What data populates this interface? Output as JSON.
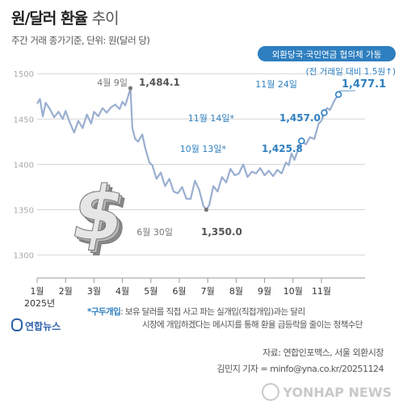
{
  "header": {
    "title": "원/달러 환율",
    "title_suffix": "추이",
    "unit": "주간 거래 종가기준, 단위: 원(달러 당)"
  },
  "chart_data": {
    "type": "line",
    "title": "원/달러 환율 추이",
    "ylim": [
      1280,
      1510
    ],
    "y_ticks": [
      1300,
      1350,
      1400,
      1450,
      1500
    ],
    "x_range": [
      1,
      12
    ],
    "x_ticks": [
      {
        "label": "1월",
        "x": 1
      },
      {
        "label": "2월",
        "x": 2
      },
      {
        "label": "3월",
        "x": 3
      },
      {
        "label": "4월",
        "x": 4
      },
      {
        "label": "5월",
        "x": 5
      },
      {
        "label": "6월",
        "x": 6
      },
      {
        "label": "7월",
        "x": 7
      },
      {
        "label": "8월",
        "x": 8
      },
      {
        "label": "9월",
        "x": 9
      },
      {
        "label": "10월",
        "x": 10
      },
      {
        "label": "11월",
        "x": 11
      }
    ],
    "year_label": "2025년",
    "series": [
      {
        "color": "#9aaed0",
        "points": [
          [
            1.0,
            1467
          ],
          [
            1.1,
            1472
          ],
          [
            1.2,
            1453
          ],
          [
            1.3,
            1468
          ],
          [
            1.45,
            1461
          ],
          [
            1.6,
            1452
          ],
          [
            1.75,
            1458
          ],
          [
            1.9,
            1450
          ],
          [
            2.0,
            1459
          ],
          [
            2.15,
            1446
          ],
          [
            2.3,
            1435
          ],
          [
            2.45,
            1448
          ],
          [
            2.6,
            1440
          ],
          [
            2.75,
            1455
          ],
          [
            2.9,
            1445
          ],
          [
            3.0,
            1458
          ],
          [
            3.15,
            1453
          ],
          [
            3.3,
            1462
          ],
          [
            3.45,
            1457
          ],
          [
            3.6,
            1463
          ],
          [
            3.75,
            1466
          ],
          [
            3.9,
            1461
          ],
          [
            4.0,
            1469
          ],
          [
            4.1,
            1465
          ],
          [
            4.2,
            1475
          ],
          [
            4.28,
            1484.1
          ],
          [
            4.35,
            1440
          ],
          [
            4.45,
            1428
          ],
          [
            4.55,
            1425
          ],
          [
            4.7,
            1433
          ],
          [
            4.8,
            1418
          ],
          [
            4.95,
            1402
          ],
          [
            5.05,
            1399
          ],
          [
            5.2,
            1384
          ],
          [
            5.35,
            1391
          ],
          [
            5.5,
            1376
          ],
          [
            5.65,
            1384
          ],
          [
            5.8,
            1370
          ],
          [
            5.95,
            1368
          ],
          [
            6.1,
            1375
          ],
          [
            6.25,
            1362
          ],
          [
            6.4,
            1362
          ],
          [
            6.55,
            1382
          ],
          [
            6.7,
            1372
          ],
          [
            6.85,
            1354
          ],
          [
            6.95,
            1350.0
          ],
          [
            7.05,
            1355
          ],
          [
            7.2,
            1376
          ],
          [
            7.35,
            1370
          ],
          [
            7.5,
            1386
          ],
          [
            7.65,
            1380
          ],
          [
            7.8,
            1395
          ],
          [
            7.95,
            1388
          ],
          [
            8.1,
            1390
          ],
          [
            8.25,
            1400
          ],
          [
            8.4,
            1386
          ],
          [
            8.55,
            1392
          ],
          [
            8.7,
            1390
          ],
          [
            8.85,
            1396
          ],
          [
            9.0,
            1388
          ],
          [
            9.15,
            1393
          ],
          [
            9.3,
            1387
          ],
          [
            9.45,
            1394
          ],
          [
            9.6,
            1390
          ],
          [
            9.75,
            1402
          ],
          [
            9.85,
            1399
          ],
          [
            9.95,
            1412
          ],
          [
            10.05,
            1405
          ],
          [
            10.2,
            1418
          ],
          [
            10.3,
            1425.8
          ],
          [
            10.45,
            1422
          ],
          [
            10.6,
            1430
          ],
          [
            10.75,
            1428
          ],
          [
            10.9,
            1445
          ],
          [
            11.0,
            1448
          ],
          [
            11.1,
            1457.0
          ],
          [
            11.2,
            1462
          ],
          [
            11.3,
            1460
          ],
          [
            11.45,
            1470
          ],
          [
            11.6,
            1477.1
          ]
        ]
      }
    ],
    "annotations": [
      {
        "date": "4월 9일",
        "value": "1,484.1",
        "x": 4.28,
        "y": 1484.1,
        "marker": "dot"
      },
      {
        "date": "6월 30일",
        "value": "1,350.0",
        "x": 6.95,
        "y": 1350.0,
        "marker": "dot"
      },
      {
        "date": "10월 13일",
        "star": "*",
        "value": "1,425.8",
        "x": 10.3,
        "y": 1425.8,
        "marker": "ring"
      },
      {
        "date": "11월 14일",
        "star": "*",
        "value": "1,457.0",
        "x": 11.1,
        "y": 1457.0,
        "marker": "ring"
      },
      {
        "date": "11월 24일",
        "value": "1,477.1",
        "x": 11.6,
        "y": 1477.1,
        "marker": "ring"
      }
    ],
    "callout": {
      "label": "외환당국·국민연금 협의체 가동",
      "sub": "(전 거래일 대비 1.5원↑)"
    }
  },
  "note": {
    "term": "*구두개입",
    "line1": ": 보유 달러를 직접 사고 파는 실개입(직접개입)과는 달리",
    "line2": "시장에 개입하겠다는 메시지를 통해 환율 급등락을 줄이는 정책수단"
  },
  "footer": {
    "logo": "연합뉴스",
    "source": "자료: 연합인포맥스, 서울 외환시장",
    "credit": "김민지 기자 = minfo@yna.co.kr/20251124",
    "watermark": "YONHAP NEWS"
  },
  "colors": {
    "line": "#9aaed0",
    "accent": "#2e7fc0",
    "annotation_text": "#555555",
    "grid": "#d6d6d6"
  }
}
